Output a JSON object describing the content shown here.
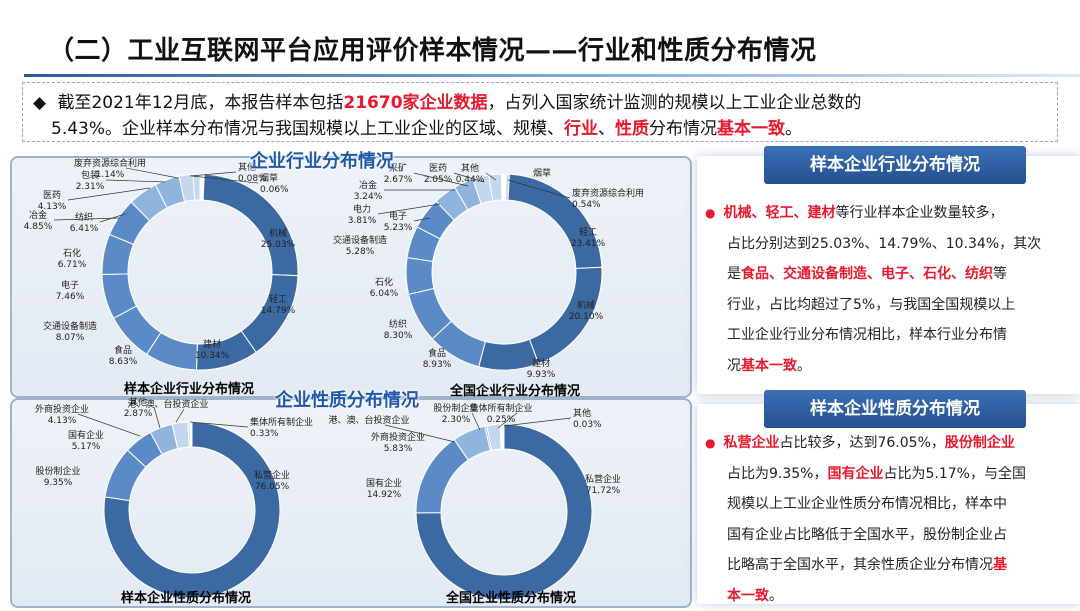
{
  "header": {
    "title": "（二）工业互联网平台应用评价样本情况——行业和性质分布情况"
  },
  "summary": {
    "bullet": "◆",
    "line1_pre": "截至2021年12月底，本报告样本包括",
    "line1_red": "21670家企业数据",
    "line1_post": "，占列入国家统计监测的规模以上工业企业总数的",
    "line2_pre": "5.43%。企业样本分布情况与我国规模以上工业企业的区域、规模、",
    "line2_red1": "行业",
    "line2_sep": "、",
    "line2_red2": "性质",
    "line2_mid": "分布情况",
    "line2_red3": "基本一致",
    "line2_end": "。"
  },
  "panels": {
    "industry_title": "企业行业分布情况",
    "nature_title": "企业性质分布情况"
  },
  "chart_data": [
    {
      "type": "pie",
      "title": "样本企业行业分布情况",
      "slices": [
        {
          "label": "其他",
          "value": 0.08
        },
        {
          "label": "烟草",
          "value": 0.06
        },
        {
          "label": "机械",
          "value": 25.03
        },
        {
          "label": "轻工",
          "value": 14.79
        },
        {
          "label": "建材",
          "value": 10.34
        },
        {
          "label": "食品",
          "value": 8.63
        },
        {
          "label": "交通设备制造",
          "value": 8.07
        },
        {
          "label": "电子",
          "value": 7.46
        },
        {
          "label": "石化",
          "value": 6.71
        },
        {
          "label": "纺织",
          "value": 6.41
        },
        {
          "label": "冶金",
          "value": 4.85
        },
        {
          "label": "医药",
          "value": 4.13
        },
        {
          "label": "包装",
          "value": 2.31
        },
        {
          "label": "废弃资源综合利用",
          "value": 1.14
        }
      ]
    },
    {
      "type": "pie",
      "title": "全国企业行业分布情况",
      "slices": [
        {
          "label": "烟草",
          "value": null
        },
        {
          "label": "废弃资源综合利用",
          "value": 0.54
        },
        {
          "label": "轻工",
          "value": 23.41
        },
        {
          "label": "机械",
          "value": 20.1
        },
        {
          "label": "建材",
          "value": 9.93
        },
        {
          "label": "食品",
          "value": 8.93
        },
        {
          "label": "纺织",
          "value": 8.3
        },
        {
          "label": "石化",
          "value": 6.04
        },
        {
          "label": "交通设备制造",
          "value": 5.28
        },
        {
          "label": "电子",
          "value": 5.23
        },
        {
          "label": "电力",
          "value": 3.81
        },
        {
          "label": "冶金",
          "value": 3.24
        },
        {
          "label": "采矿",
          "value": 2.67
        },
        {
          "label": "医药",
          "value": 2.05
        },
        {
          "label": "其他",
          "value": 0.44
        }
      ]
    },
    {
      "type": "pie",
      "title": "样本企业性质分布情况",
      "slices": [
        {
          "label": "私营企业",
          "value": 76.05
        },
        {
          "label": "股份制企业",
          "value": 9.35
        },
        {
          "label": "国有企业",
          "value": 5.17
        },
        {
          "label": "外商投资企业",
          "value": 4.13
        },
        {
          "label": "其他",
          "value": 2.87
        },
        {
          "label": "港、澳、台投资企业",
          "value": null
        },
        {
          "label": "集体所有制企业",
          "value": 0.33
        }
      ]
    },
    {
      "type": "pie",
      "title": "全国企业性质分布情况",
      "slices": [
        {
          "label": "私营企业",
          "value": 71.72
        },
        {
          "label": "国有企业",
          "value": 14.92
        },
        {
          "label": "外商投资企业",
          "value": 5.83
        },
        {
          "label": "港、澳、台投资企业",
          "value": null
        },
        {
          "label": "股份制企业",
          "value": 2.3
        },
        {
          "label": "集体所有制企业",
          "value": 0.25
        },
        {
          "label": "其他",
          "value": 0.03
        }
      ]
    }
  ],
  "sidebar": {
    "industry": {
      "header": "样本企业行业分布情况",
      "bullet": "●",
      "lines": [
        [
          {
            "t": "机械、轻工、建材",
            "r": true
          },
          {
            "t": "等行业样本企业数量较多，",
            "r": false
          }
        ],
        [
          {
            "t": "占比分别达到25.03%、14.79%、10.34%，其次",
            "r": false
          }
        ],
        [
          {
            "t": "是",
            "r": false
          },
          {
            "t": "食品、交通设备制造、电子、石化、纺织",
            "r": true
          },
          {
            "t": "等",
            "r": false
          }
        ],
        [
          {
            "t": "行业，占比均超过了5%，与我国全国规模以上",
            "r": false
          }
        ],
        [
          {
            "t": "工业企业行业分布情况相比，样本行业分布情",
            "r": false
          }
        ],
        [
          {
            "t": "况",
            "r": false
          },
          {
            "t": "基本一致",
            "r": true
          },
          {
            "t": "。",
            "r": false
          }
        ]
      ]
    },
    "nature": {
      "header": "样本企业性质分布情况",
      "bullet": "●",
      "lines": [
        [
          {
            "t": "私营企业",
            "r": true
          },
          {
            "t": "占比较多，达到76.05%，",
            "r": false
          },
          {
            "t": "股份制企业",
            "r": true
          }
        ],
        [
          {
            "t": "占比为9.35%，",
            "r": false
          },
          {
            "t": "国有企业",
            "r": true
          },
          {
            "t": "占比为5.17%，与全国",
            "r": false
          }
        ],
        [
          {
            "t": "规模以上工业企业性质分布情况相比，样本中",
            "r": false
          }
        ],
        [
          {
            "t": "国有企业占比略低于全国水平，股份制企业占",
            "r": false
          }
        ],
        [
          {
            "t": "比略高于全国水平，其余性质企业分布情况",
            "r": false
          },
          {
            "t": "基",
            "r": true
          }
        ],
        [
          {
            "t": "本一致",
            "r": true
          },
          {
            "t": "。",
            "r": false
          }
        ]
      ]
    }
  },
  "colors": {
    "dark": "#3b6aa3",
    "mid": "#5a8bc6",
    "light": "#8fb5df",
    "pale": "#c3d7ee",
    "accent_red": "#e8192c",
    "title_blue": "#1e59a8"
  }
}
